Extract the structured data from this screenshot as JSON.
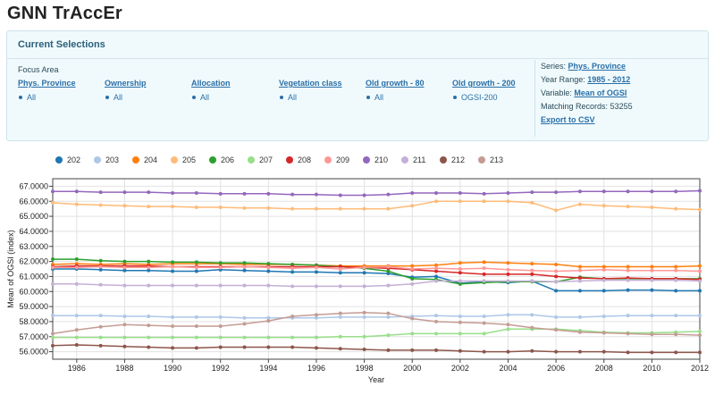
{
  "app": {
    "title": "GNN TrAccEr"
  },
  "selections": {
    "title": "Current Selections",
    "focus_area_label": "Focus Area",
    "filters": [
      {
        "name": "Phys. Province",
        "value": "All"
      },
      {
        "name": "Ownership",
        "value": "All"
      },
      {
        "name": "Allocation",
        "value": "All"
      },
      {
        "name": "Vegetation class",
        "value": "All"
      },
      {
        "name": "Old growth - 80",
        "value": "All"
      },
      {
        "name": "Old growth - 200",
        "value": "OGSI-200"
      }
    ],
    "info": {
      "series_label": "Series:",
      "series_value": "Phys. Province",
      "year_range_label": "Year Range:",
      "year_range_value": "1985 - 2012",
      "variable_label": "Variable:",
      "variable_value": "Mean of OGSI",
      "records_label": "Matching Records:",
      "records_value": "53255",
      "export_label": "Export to CSV"
    }
  },
  "chart_data": {
    "type": "line",
    "xlabel": "Year",
    "ylabel": "Mean of OGSI (index)",
    "xlim": [
      1985,
      2012
    ],
    "ylim": [
      55500,
      67500
    ],
    "x_ticks": [
      "1986",
      "1988",
      "1990",
      "1992",
      "1994",
      "1996",
      "1998",
      "2000",
      "2002",
      "2004",
      "2006",
      "2008",
      "2010",
      "2012"
    ],
    "y_ticks": [
      "56.0000",
      "57.0000",
      "58.0000",
      "59.0000",
      "60.0000",
      "61.0000",
      "62.0000",
      "63.0000",
      "64.0000",
      "65.0000",
      "66.0000",
      "67.0000"
    ],
    "grid": true,
    "legend_position": "top",
    "x": [
      1985,
      1986,
      1987,
      1988,
      1989,
      1990,
      1991,
      1992,
      1993,
      1994,
      1995,
      1996,
      1997,
      1998,
      1999,
      2000,
      2001,
      2002,
      2003,
      2004,
      2005,
      2006,
      2007,
      2008,
      2009,
      2010,
      2011,
      2012
    ],
    "series": [
      {
        "name": "202",
        "color": "#1f77b4",
        "values": [
          61500,
          61500,
          61450,
          61400,
          61400,
          61350,
          61350,
          61450,
          61400,
          61350,
          61300,
          61300,
          61250,
          61250,
          61200,
          60950,
          61000,
          60550,
          60650,
          60600,
          60700,
          60050,
          60050,
          60050,
          60100,
          60100,
          60050,
          60050
        ]
      },
      {
        "name": "203",
        "color": "#aec7e8",
        "values": [
          58400,
          58400,
          58400,
          58350,
          58350,
          58300,
          58300,
          58300,
          58250,
          58250,
          58250,
          58250,
          58300,
          58300,
          58300,
          58350,
          58400,
          58350,
          58350,
          58450,
          58450,
          58300,
          58300,
          58350,
          58400,
          58400,
          58400,
          58400
        ]
      },
      {
        "name": "204",
        "color": "#ff7f0e",
        "values": [
          61800,
          61850,
          61800,
          61850,
          61800,
          61850,
          61850,
          61850,
          61800,
          61800,
          61800,
          61750,
          61700,
          61700,
          61700,
          61700,
          61750,
          61900,
          61950,
          61900,
          61850,
          61800,
          61650,
          61650,
          61650,
          61650,
          61650,
          61700
        ]
      },
      {
        "name": "205",
        "color": "#ffbb78",
        "values": [
          65900,
          65800,
          65750,
          65700,
          65650,
          65650,
          65600,
          65600,
          65550,
          65550,
          65500,
          65500,
          65500,
          65500,
          65500,
          65700,
          66000,
          66000,
          66000,
          66000,
          65900,
          65400,
          65800,
          65700,
          65650,
          65600,
          65500,
          65450
        ]
      },
      {
        "name": "206",
        "color": "#2ca02c",
        "values": [
          62150,
          62150,
          62050,
          62000,
          62000,
          61950,
          61950,
          61900,
          61900,
          61850,
          61800,
          61750,
          61650,
          61550,
          61350,
          60850,
          60800,
          60500,
          60600,
          60650,
          60650,
          60650,
          60950,
          60850,
          60850,
          60850,
          60850,
          60850
        ]
      },
      {
        "name": "207",
        "color": "#98df8a",
        "values": [
          56950,
          56950,
          56950,
          56950,
          56950,
          56950,
          56950,
          56950,
          56950,
          56950,
          56950,
          56950,
          57000,
          57000,
          57100,
          57200,
          57200,
          57200,
          57200,
          57500,
          57500,
          57500,
          57400,
          57300,
          57250,
          57250,
          57300,
          57350
        ]
      },
      {
        "name": "208",
        "color": "#d62728",
        "values": [
          61650,
          61700,
          61700,
          61700,
          61700,
          61650,
          61650,
          61650,
          61650,
          61650,
          61650,
          61650,
          61650,
          61600,
          61550,
          61450,
          61350,
          61250,
          61150,
          61150,
          61150,
          61000,
          60900,
          60850,
          60900,
          60850,
          60850,
          60800
        ]
      },
      {
        "name": "209",
        "color": "#ff9896",
        "values": [
          61600,
          61600,
          61650,
          61600,
          61600,
          61650,
          61600,
          61600,
          61650,
          61600,
          61550,
          61600,
          61500,
          61600,
          61650,
          61500,
          61550,
          61500,
          61550,
          61450,
          61400,
          61350,
          61400,
          61450,
          61400,
          61400,
          61400,
          61350
        ]
      },
      {
        "name": "210",
        "color": "#9467bd",
        "values": [
          66650,
          66650,
          66600,
          66600,
          66600,
          66550,
          66550,
          66500,
          66500,
          66500,
          66450,
          66450,
          66400,
          66400,
          66450,
          66550,
          66550,
          66550,
          66500,
          66550,
          66600,
          66600,
          66650,
          66650,
          66650,
          66650,
          66650,
          66700
        ]
      },
      {
        "name": "211",
        "color": "#c5b0d5",
        "values": [
          60500,
          60500,
          60450,
          60400,
          60400,
          60400,
          60400,
          60400,
          60400,
          60400,
          60350,
          60350,
          60350,
          60350,
          60400,
          60500,
          60700,
          60700,
          60700,
          60700,
          60700,
          60650,
          60700,
          60750,
          60750,
          60750,
          60750,
          60700
        ]
      },
      {
        "name": "212",
        "color": "#8c564b",
        "values": [
          56400,
          56450,
          56400,
          56350,
          56300,
          56250,
          56250,
          56300,
          56300,
          56300,
          56300,
          56250,
          56200,
          56150,
          56100,
          56100,
          56100,
          56050,
          56000,
          56000,
          56050,
          56000,
          56000,
          56000,
          55950,
          55950,
          55950,
          55950
        ]
      },
      {
        "name": "213",
        "color": "#c49c94",
        "values": [
          57200,
          57450,
          57650,
          57800,
          57750,
          57700,
          57700,
          57700,
          57850,
          58050,
          58350,
          58450,
          58550,
          58600,
          58550,
          58200,
          58000,
          57950,
          57900,
          57800,
          57600,
          57450,
          57300,
          57250,
          57200,
          57150,
          57150,
          57100
        ]
      }
    ]
  }
}
